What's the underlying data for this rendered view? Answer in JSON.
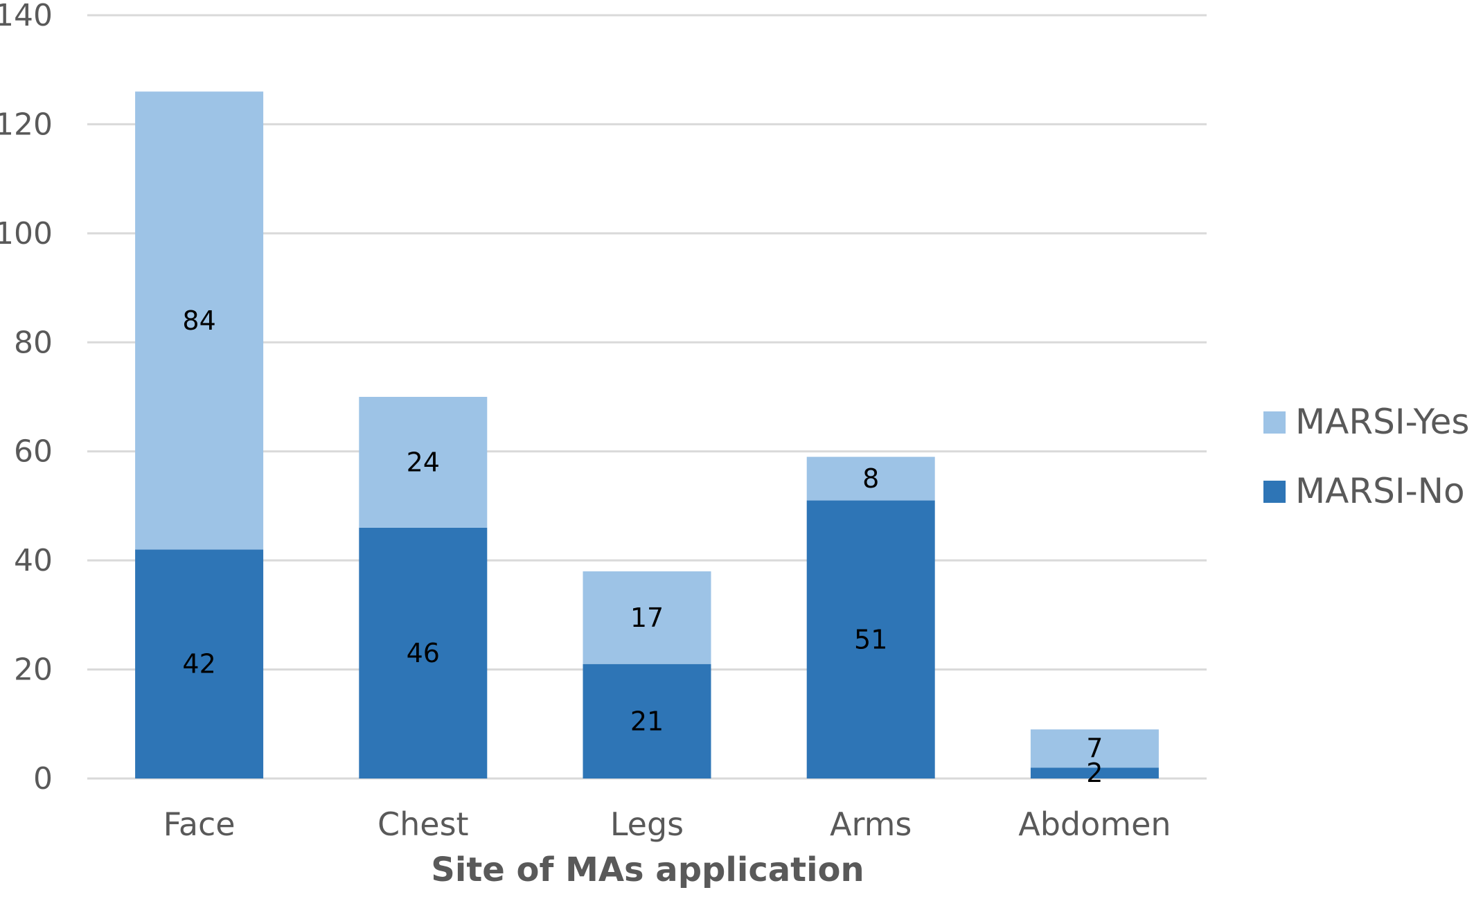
{
  "chart_data": {
    "type": "bar",
    "stacked": true,
    "categories": [
      "Face",
      "Chest",
      "Legs",
      "Arms",
      "Abdomen"
    ],
    "series": [
      {
        "name": "MARSI-No",
        "values": [
          42,
          46,
          21,
          51,
          2
        ],
        "color": "#2E75B6"
      },
      {
        "name": "MARSI-Yes",
        "values": [
          84,
          24,
          17,
          8,
          7
        ],
        "color": "#9DC3E6"
      }
    ],
    "title": "",
    "xlabel": "Site of MAs application",
    "ylabel": "",
    "ylim": [
      0,
      140
    ],
    "yticks": [
      "0",
      "20",
      "40",
      "60",
      "80",
      "100",
      "120",
      "140"
    ],
    "grid": true,
    "gridColor": "#D9D9D9",
    "legend": {
      "position": "right",
      "order": [
        "MARSI-Yes",
        "MARSI-No"
      ]
    }
  }
}
